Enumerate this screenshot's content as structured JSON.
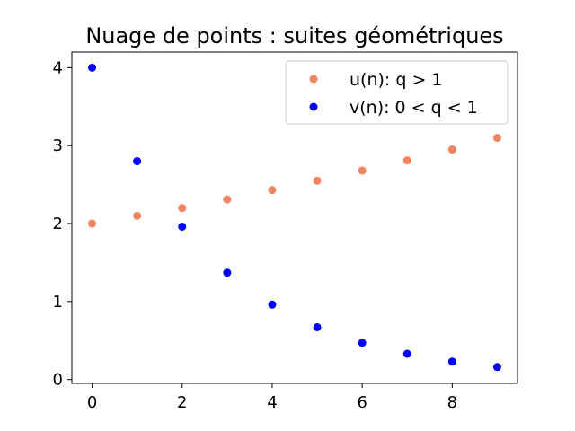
{
  "chart_data": {
    "type": "scatter",
    "title": "Nuage de points : suites géométriques",
    "xlabel": "",
    "ylabel": "",
    "xlim": [
      -0.45,
      9.45
    ],
    "ylim": [
      -0.05,
      4.2
    ],
    "x_ticks": [
      0,
      2,
      4,
      6,
      8
    ],
    "y_ticks": [
      0,
      1,
      2,
      3,
      4
    ],
    "grid": false,
    "legend_position": "upper right",
    "series": [
      {
        "name": "u(n): q > 1",
        "color": "#f4845f",
        "x": [
          0,
          1,
          2,
          3,
          4,
          5,
          6,
          7,
          8,
          9
        ],
        "y": [
          2.0,
          2.1,
          2.2,
          2.31,
          2.43,
          2.55,
          2.68,
          2.81,
          2.95,
          3.1
        ]
      },
      {
        "name": "v(n): 0 < q < 1",
        "color": "#0000ff",
        "x": [
          0,
          1,
          2,
          3,
          4,
          5,
          6,
          7,
          8,
          9
        ],
        "y": [
          4.0,
          2.8,
          1.96,
          1.37,
          0.96,
          0.67,
          0.47,
          0.33,
          0.23,
          0.16
        ]
      }
    ]
  }
}
